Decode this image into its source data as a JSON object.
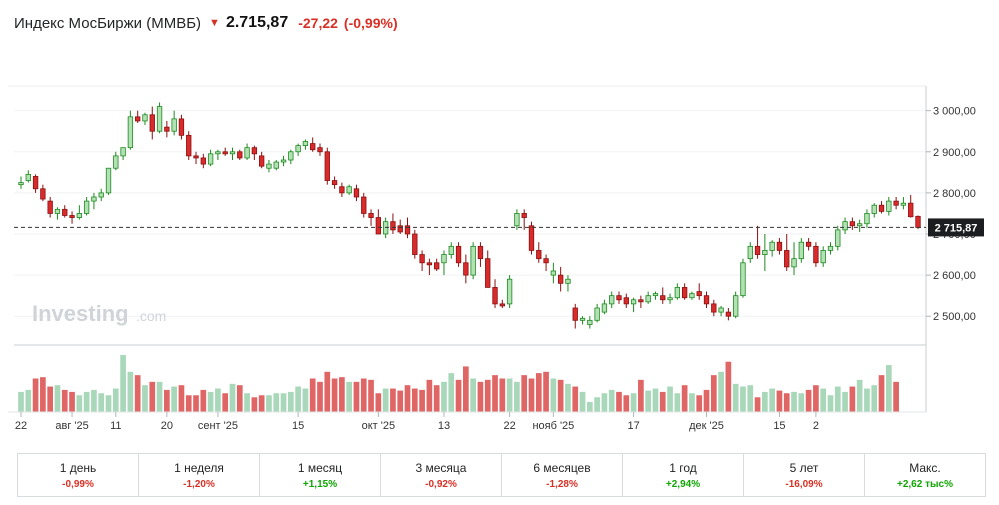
{
  "header": {
    "title": "Индекс МосБиржи (MMBБ)",
    "price": "2.715,87",
    "change": "-27,22",
    "change_pct": "(-0,99%)",
    "direction_icon": "arrow-down-icon"
  },
  "colors": {
    "up_body": "#b2e2b4",
    "up_border": "#1d8a1f",
    "down_body": "#d92b2b",
    "down_border": "#8b1010",
    "vol_up": "#a8d8b9",
    "vol_down": "#e06666",
    "text_neg": "#d93025",
    "text_pos": "#0ea600"
  },
  "watermark": {
    "brand": "Investing",
    "suffix": ".com"
  },
  "current_price_label": "2 715,87",
  "periods": [
    {
      "label": "1 день",
      "value": "-0,99%",
      "sign": "neg"
    },
    {
      "label": "1 неделя",
      "value": "-1,20%",
      "sign": "neg"
    },
    {
      "label": "1 месяц",
      "value": "+1,15%",
      "sign": "pos"
    },
    {
      "label": "3 месяца",
      "value": "-0,92%",
      "sign": "neg"
    },
    {
      "label": "6 месяцев",
      "value": "-1,28%",
      "sign": "neg"
    },
    {
      "label": "1 год",
      "value": "+2,94%",
      "sign": "pos"
    },
    {
      "label": "5 лет",
      "value": "-16,09%",
      "sign": "neg"
    },
    {
      "label": "Макс.",
      "value": "+2,62 тыс%",
      "sign": "pos"
    }
  ],
  "chart_data": {
    "type": "candlestick",
    "title": "Индекс МосБиржи (MMBБ)",
    "y_ticks": [
      "3 000,00",
      "2 900,00",
      "2 800,00",
      "2 700,00",
      "2 600,00",
      "2 500,00"
    ],
    "y_tick_values": [
      3000,
      2900,
      2800,
      2700,
      2600,
      2500
    ],
    "ylim": [
      2430,
      3060
    ],
    "x_ticks": [
      {
        "label": "22",
        "index": 0
      },
      {
        "label": "авг '25",
        "index": 7
      },
      {
        "label": "11",
        "index": 13
      },
      {
        "label": "20",
        "index": 20
      },
      {
        "label": "сент '25",
        "index": 27
      },
      {
        "label": "15",
        "index": 38
      },
      {
        "label": "окт '25",
        "index": 49
      },
      {
        "label": "13",
        "index": 58
      },
      {
        "label": "22",
        "index": 67
      },
      {
        "label": "нояб '25",
        "index": 73
      },
      {
        "label": "17",
        "index": 84
      },
      {
        "label": "дек '25",
        "index": 94
      },
      {
        "label": "15",
        "index": 104
      },
      {
        "label": "2",
        "index": 109
      }
    ],
    "ohlc": [
      [
        2820,
        2840,
        2810,
        2825
      ],
      [
        2830,
        2855,
        2825,
        2845
      ],
      [
        2840,
        2845,
        2800,
        2810
      ],
      [
        2810,
        2820,
        2780,
        2785
      ],
      [
        2780,
        2790,
        2740,
        2750
      ],
      [
        2750,
        2765,
        2735,
        2760
      ],
      [
        2760,
        2770,
        2740,
        2745
      ],
      [
        2745,
        2755,
        2725,
        2740
      ],
      [
        2740,
        2770,
        2735,
        2750
      ],
      [
        2750,
        2790,
        2745,
        2780
      ],
      [
        2780,
        2800,
        2760,
        2790
      ],
      [
        2790,
        2810,
        2780,
        2800
      ],
      [
        2800,
        2860,
        2795,
        2860
      ],
      [
        2860,
        2900,
        2855,
        2890
      ],
      [
        2890,
        2910,
        2880,
        2910
      ],
      [
        2910,
        3000,
        2905,
        2985
      ],
      [
        2985,
        3000,
        2970,
        2975
      ],
      [
        2975,
        2995,
        2965,
        2990
      ],
      [
        2990,
        3010,
        2930,
        2950
      ],
      [
        2950,
        3020,
        2945,
        3010
      ],
      [
        2960,
        2975,
        2935,
        2950
      ],
      [
        2950,
        3000,
        2940,
        2980
      ],
      [
        2980,
        2990,
        2930,
        2940
      ],
      [
        2940,
        2950,
        2880,
        2890
      ],
      [
        2890,
        2900,
        2870,
        2885
      ],
      [
        2885,
        2895,
        2860,
        2870
      ],
      [
        2870,
        2905,
        2865,
        2895
      ],
      [
        2895,
        2905,
        2880,
        2900
      ],
      [
        2900,
        2910,
        2890,
        2895
      ],
      [
        2895,
        2910,
        2880,
        2900
      ],
      [
        2900,
        2905,
        2880,
        2885
      ],
      [
        2885,
        2920,
        2880,
        2910
      ],
      [
        2910,
        2915,
        2880,
        2895
      ],
      [
        2890,
        2900,
        2860,
        2865
      ],
      [
        2860,
        2880,
        2850,
        2870
      ],
      [
        2860,
        2880,
        2855,
        2875
      ],
      [
        2875,
        2890,
        2865,
        2880
      ],
      [
        2880,
        2905,
        2870,
        2900
      ],
      [
        2900,
        2920,
        2890,
        2915
      ],
      [
        2915,
        2930,
        2905,
        2925
      ],
      [
        2920,
        2935,
        2900,
        2905
      ],
      [
        2910,
        2920,
        2890,
        2900
      ],
      [
        2900,
        2910,
        2820,
        2830
      ],
      [
        2830,
        2840,
        2810,
        2820
      ],
      [
        2815,
        2825,
        2790,
        2800
      ],
      [
        2800,
        2820,
        2795,
        2815
      ],
      [
        2810,
        2820,
        2780,
        2790
      ],
      [
        2790,
        2800,
        2740,
        2750
      ],
      [
        2750,
        2760,
        2720,
        2740
      ],
      [
        2740,
        2760,
        2700,
        2700
      ],
      [
        2700,
        2740,
        2690,
        2730
      ],
      [
        2730,
        2750,
        2700,
        2710
      ],
      [
        2720,
        2735,
        2700,
        2705
      ],
      [
        2720,
        2740,
        2690,
        2700
      ],
      [
        2700,
        2710,
        2640,
        2650
      ],
      [
        2650,
        2660,
        2610,
        2630
      ],
      [
        2630,
        2640,
        2600,
        2625
      ],
      [
        2630,
        2640,
        2610,
        2615
      ],
      [
        2630,
        2660,
        2600,
        2650
      ],
      [
        2650,
        2680,
        2640,
        2670
      ],
      [
        2670,
        2680,
        2620,
        2630
      ],
      [
        2630,
        2650,
        2580,
        2600
      ],
      [
        2600,
        2680,
        2590,
        2670
      ],
      [
        2670,
        2680,
        2620,
        2640
      ],
      [
        2640,
        2660,
        2570,
        2570
      ],
      [
        2570,
        2590,
        2520,
        2530
      ],
      [
        2530,
        2540,
        2520,
        2525
      ],
      [
        2530,
        2600,
        2520,
        2590
      ],
      [
        2720,
        2760,
        2710,
        2750
      ],
      [
        2750,
        2760,
        2710,
        2740
      ],
      [
        2720,
        2730,
        2650,
        2660
      ],
      [
        2660,
        2680,
        2630,
        2640
      ],
      [
        2640,
        2650,
        2610,
        2630
      ],
      [
        2600,
        2630,
        2580,
        2610
      ],
      [
        2600,
        2620,
        2560,
        2580
      ],
      [
        2580,
        2600,
        2560,
        2590
      ],
      [
        2520,
        2530,
        2470,
        2490
      ],
      [
        2490,
        2500,
        2480,
        2495
      ],
      [
        2480,
        2500,
        2470,
        2490
      ],
      [
        2490,
        2530,
        2485,
        2520
      ],
      [
        2510,
        2540,
        2505,
        2530
      ],
      [
        2530,
        2560,
        2520,
        2550
      ],
      [
        2550,
        2560,
        2530,
        2540
      ],
      [
        2545,
        2555,
        2520,
        2530
      ],
      [
        2530,
        2545,
        2510,
        2540
      ],
      [
        2540,
        2550,
        2520,
        2535
      ],
      [
        2535,
        2560,
        2530,
        2550
      ],
      [
        2550,
        2560,
        2540,
        2555
      ],
      [
        2550,
        2570,
        2530,
        2540
      ],
      [
        2540,
        2555,
        2530,
        2545
      ],
      [
        2545,
        2580,
        2540,
        2570
      ],
      [
        2570,
        2580,
        2540,
        2545
      ],
      [
        2545,
        2560,
        2540,
        2555
      ],
      [
        2560,
        2580,
        2540,
        2550
      ],
      [
        2550,
        2560,
        2520,
        2530
      ],
      [
        2530,
        2540,
        2500,
        2510
      ],
      [
        2510,
        2525,
        2500,
        2520
      ],
      [
        2510,
        2520,
        2490,
        2500
      ],
      [
        2500,
        2560,
        2495,
        2550
      ],
      [
        2550,
        2640,
        2545,
        2630
      ],
      [
        2640,
        2680,
        2630,
        2670
      ],
      [
        2670,
        2720,
        2640,
        2650
      ],
      [
        2650,
        2700,
        2610,
        2660
      ],
      [
        2660,
        2685,
        2645,
        2680
      ],
      [
        2680,
        2690,
        2650,
        2660
      ],
      [
        2660,
        2700,
        2610,
        2620
      ],
      [
        2620,
        2680,
        2600,
        2640
      ],
      [
        2640,
        2690,
        2630,
        2680
      ],
      [
        2680,
        2690,
        2660,
        2670
      ],
      [
        2670,
        2680,
        2620,
        2630
      ],
      [
        2630,
        2670,
        2620,
        2660
      ],
      [
        2660,
        2680,
        2650,
        2670
      ],
      [
        2670,
        2720,
        2660,
        2710
      ],
      [
        2710,
        2740,
        2700,
        2730
      ],
      [
        2730,
        2740,
        2710,
        2720
      ],
      [
        2720,
        2735,
        2705,
        2725
      ],
      [
        2725,
        2760,
        2715,
        2750
      ],
      [
        2750,
        2775,
        2740,
        2770
      ],
      [
        2770,
        2780,
        2750,
        2755
      ],
      [
        2755,
        2790,
        2745,
        2780
      ],
      [
        2780,
        2790,
        2760,
        2770
      ],
      [
        2770,
        2790,
        2760,
        2775
      ],
      [
        2775,
        2795,
        2740,
        2742
      ],
      [
        2743,
        2745,
        2712,
        2716
      ]
    ],
    "volume": [
      0.3,
      0.33,
      0.5,
      0.52,
      0.38,
      0.4,
      0.33,
      0.3,
      0.25,
      0.3,
      0.33,
      0.28,
      0.25,
      0.35,
      0.85,
      0.6,
      0.55,
      0.4,
      0.45,
      0.45,
      0.33,
      0.38,
      0.4,
      0.25,
      0.25,
      0.33,
      0.3,
      0.35,
      0.28,
      0.42,
      0.4,
      0.28,
      0.22,
      0.25,
      0.25,
      0.28,
      0.28,
      0.3,
      0.38,
      0.35,
      0.5,
      0.45,
      0.6,
      0.5,
      0.52,
      0.45,
      0.45,
      0.5,
      0.48,
      0.28,
      0.35,
      0.35,
      0.32,
      0.4,
      0.35,
      0.33,
      0.48,
      0.4,
      0.45,
      0.58,
      0.48,
      0.68,
      0.5,
      0.45,
      0.48,
      0.55,
      0.5,
      0.5,
      0.45,
      0.55,
      0.5,
      0.58,
      0.6,
      0.5,
      0.48,
      0.42,
      0.38,
      0.3,
      0.15,
      0.22,
      0.28,
      0.33,
      0.3,
      0.25,
      0.28,
      0.48,
      0.32,
      0.35,
      0.3,
      0.38,
      0.28,
      0.4,
      0.28,
      0.25,
      0.33,
      0.55,
      0.6,
      0.75,
      0.42,
      0.38,
      0.4,
      0.22,
      0.3,
      0.35,
      0.32,
      0.28,
      0.3,
      0.28,
      0.33,
      0.4,
      0.35,
      0.25,
      0.38,
      0.3,
      0.38,
      0.48,
      0.35,
      0.4,
      0.55,
      0.7,
      0.45
    ]
  }
}
